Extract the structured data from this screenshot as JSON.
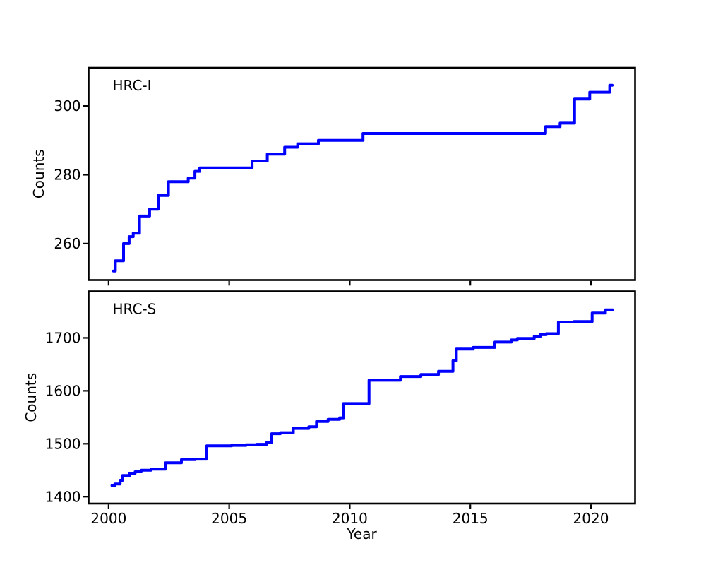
{
  "figure": {
    "background": "#ffffff",
    "axis_color": "#000000",
    "text_color": "#000000",
    "series_color": "#0000ff"
  },
  "chart_data": [
    {
      "id": "hrc-i",
      "type": "line",
      "line_style": "step-post",
      "annotation": "HRC-I",
      "xlabel": "",
      "ylabel": "Counts",
      "grid": false,
      "legend": "none",
      "xlim": [
        1999.17,
        2021.83
      ],
      "ylim": [
        249.4,
        311.1
      ],
      "x_ticks": [
        2000,
        2005,
        2010,
        2015,
        2020
      ],
      "show_x_tick_labels": false,
      "y_ticks": [
        260,
        280,
        300
      ],
      "color": "#0000ff",
      "line_width": 4,
      "series": [
        {
          "name": "HRC-I cumulative counts",
          "points": [
            [
              2000.2,
              252
            ],
            [
              2000.28,
              255
            ],
            [
              2000.62,
              260
            ],
            [
              2000.85,
              262
            ],
            [
              2001.02,
              263
            ],
            [
              2001.28,
              268
            ],
            [
              2001.7,
              270
            ],
            [
              2002.06,
              274
            ],
            [
              2002.48,
              278
            ],
            [
              2003.3,
              279
            ],
            [
              2003.58,
              281
            ],
            [
              2003.78,
              282
            ],
            [
              2005.95,
              284
            ],
            [
              2006.58,
              286
            ],
            [
              2007.3,
              288
            ],
            [
              2007.84,
              289
            ],
            [
              2008.7,
              290
            ],
            [
              2010.55,
              292
            ],
            [
              2018.12,
              294
            ],
            [
              2018.72,
              295
            ],
            [
              2019.32,
              302
            ],
            [
              2019.95,
              304
            ],
            [
              2020.78,
              306
            ],
            [
              2020.88,
              306
            ]
          ]
        }
      ]
    },
    {
      "id": "hrc-s",
      "type": "line",
      "line_style": "step-post",
      "annotation": "HRC-S",
      "xlabel": "Year",
      "ylabel": "Counts",
      "grid": false,
      "legend": "none",
      "xlim": [
        1999.17,
        2021.83
      ],
      "ylim": [
        1387,
        1788
      ],
      "x_ticks": [
        2000,
        2005,
        2010,
        2015,
        2020
      ],
      "show_x_tick_labels": true,
      "y_ticks": [
        1400,
        1500,
        1600,
        1700
      ],
      "color": "#0000ff",
      "line_width": 4,
      "series": [
        {
          "name": "HRC-S cumulative counts",
          "points": [
            [
              2000.14,
              1421
            ],
            [
              2000.26,
              1424
            ],
            [
              2000.48,
              1431
            ],
            [
              2000.58,
              1440
            ],
            [
              2000.88,
              1444
            ],
            [
              2001.1,
              1447
            ],
            [
              2001.36,
              1450
            ],
            [
              2001.76,
              1452
            ],
            [
              2002.36,
              1464
            ],
            [
              2003.02,
              1470
            ],
            [
              2003.6,
              1471
            ],
            [
              2004.07,
              1496
            ],
            [
              2005.1,
              1497
            ],
            [
              2005.7,
              1498
            ],
            [
              2006.15,
              1499
            ],
            [
              2006.55,
              1502
            ],
            [
              2006.76,
              1519
            ],
            [
              2007.12,
              1521
            ],
            [
              2007.66,
              1529
            ],
            [
              2008.3,
              1532
            ],
            [
              2008.62,
              1542
            ],
            [
              2009.1,
              1546
            ],
            [
              2009.58,
              1549
            ],
            [
              2009.74,
              1576
            ],
            [
              2010.8,
              1620
            ],
            [
              2012.1,
              1627
            ],
            [
              2012.95,
              1631
            ],
            [
              2013.68,
              1637
            ],
            [
              2014.28,
              1657
            ],
            [
              2014.42,
              1679
            ],
            [
              2015.12,
              1682
            ],
            [
              2016.02,
              1692
            ],
            [
              2016.7,
              1696
            ],
            [
              2016.95,
              1699
            ],
            [
              2017.65,
              1703
            ],
            [
              2017.9,
              1706
            ],
            [
              2018.15,
              1708
            ],
            [
              2018.65,
              1730
            ],
            [
              2019.3,
              1731
            ],
            [
              2020.05,
              1747
            ],
            [
              2020.6,
              1753
            ],
            [
              2020.9,
              1753
            ]
          ]
        }
      ]
    }
  ]
}
